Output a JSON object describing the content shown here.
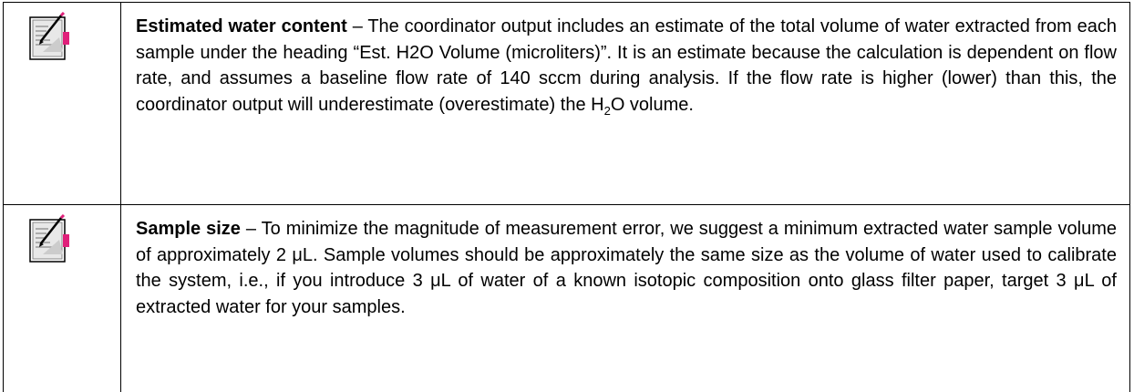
{
  "notes": [
    {
      "term": "Estimated water content",
      "body": [
        " – The coordinator output includes an estimate of the total volume of water extracted from each sample under the heading “Est. H2O Volume (microliters)”.  It is an estimate because the calculation is dependent on flow rate, and assumes a baseline flow rate of 140 sccm during analysis.  If the flow rate is higher (lower) than this, the coordinator output will underestimate (overestimate) the H",
        "2",
        "O volume."
      ]
    },
    {
      "term": "Sample size",
      "body": [
        " – To minimize the magnitude of measurement error, we suggest a minimum extracted water sample volume of approximately 2 μL.  Sample volumes should be approximately the same size as the volume of water used to calibrate the system, i.e., if you introduce 3 μL of water of a known isotopic composition onto glass filter paper, target 3 μL of extracted water for your samples."
      ]
    }
  ]
}
